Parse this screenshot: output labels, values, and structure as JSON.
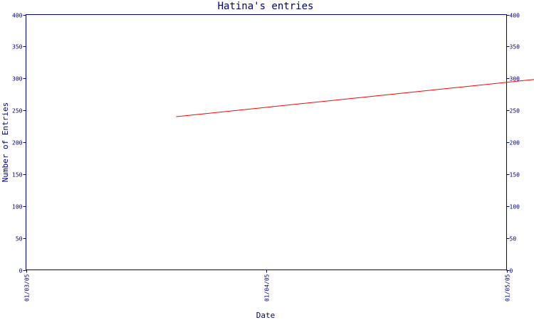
{
  "chart_data": {
    "type": "line",
    "title": "Hatina's entries",
    "xlabel": "Date",
    "ylabel": "Number of Entries",
    "x_ticks": [
      "01/03/05",
      "01/04/05",
      "01/05/05"
    ],
    "y_ticks": [
      0,
      50,
      100,
      150,
      200,
      250,
      300,
      350,
      400
    ],
    "ylim": [
      0,
      400
    ],
    "secondary_y_axis": true,
    "grid": false,
    "series": [
      {
        "color": "#ff0000",
        "points": [
          {
            "x": "01/03/05 15:00",
            "y": 240
          },
          {
            "x": "01/05/05 16:00",
            "y": 320
          }
        ]
      }
    ],
    "colors": {
      "axis": "#000080",
      "line": "#ff0000",
      "background": "#ffffff"
    }
  }
}
